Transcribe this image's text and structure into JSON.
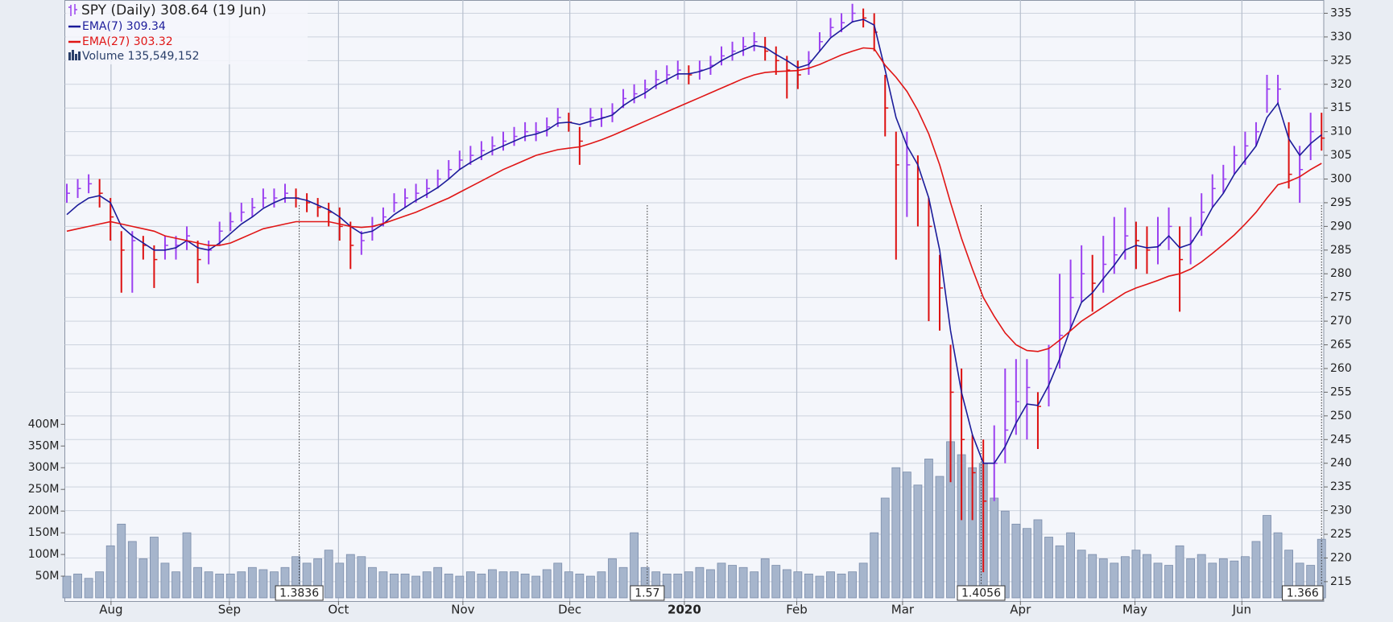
{
  "chart_data": {
    "type": "ohlc",
    "price": {
      "name": "SPY (Daily) 308.64 (19 Jun)",
      "up_color": "#9b40f0",
      "down_color": "#dd1010",
      "high": [
        299,
        300,
        301,
        300,
        296,
        289,
        289,
        288,
        286,
        288,
        288,
        290,
        287,
        287,
        291,
        293,
        295,
        296,
        298,
        298,
        299,
        298,
        297,
        296,
        295,
        294,
        291,
        289,
        292,
        294,
        297,
        298,
        299,
        300,
        302,
        304,
        306,
        307,
        308,
        309,
        310,
        311,
        312,
        312,
        313,
        315,
        314,
        311,
        315,
        315,
        316,
        319,
        320,
        321,
        323,
        324,
        325,
        324,
        325,
        326,
        328,
        329,
        330,
        331,
        330,
        328,
        326,
        325,
        327,
        331,
        334,
        335,
        337,
        336,
        335,
        322,
        310,
        310,
        305,
        296,
        284,
        265,
        260,
        246,
        245,
        248,
        260,
        262,
        262,
        255,
        265,
        280,
        283,
        286,
        284,
        288,
        292,
        294,
        291,
        290,
        292,
        294,
        290,
        292,
        297,
        301,
        303,
        307,
        310,
        312,
        322,
        322,
        312,
        307,
        314,
        314
      ],
      "low": [
        295,
        296,
        297,
        294,
        287,
        276,
        276,
        283,
        277,
        283,
        283,
        285,
        278,
        282,
        286,
        289,
        291,
        292,
        294,
        294,
        295,
        294,
        293,
        292,
        290,
        287,
        281,
        284,
        287,
        290,
        293,
        294,
        295,
        296,
        298,
        300,
        302,
        303,
        304,
        305,
        306,
        307,
        308,
        308,
        309,
        311,
        310,
        303,
        311,
        311,
        312,
        315,
        316,
        317,
        319,
        320,
        321,
        320,
        321,
        322,
        324,
        325,
        326,
        327,
        325,
        322,
        317,
        319,
        322,
        327,
        330,
        331,
        333,
        332,
        327,
        309,
        283,
        292,
        290,
        270,
        268,
        236,
        228,
        228,
        217,
        232,
        240,
        246,
        245,
        243,
        252,
        260,
        268,
        274,
        272,
        276,
        280,
        283,
        281,
        280,
        282,
        285,
        272,
        282,
        288,
        294,
        297,
        301,
        303,
        307,
        314,
        316,
        298,
        295,
        304,
        306
      ],
      "close": [
        297,
        298,
        299,
        297,
        292,
        285,
        287,
        286,
        283,
        286,
        286,
        288,
        283,
        285,
        289,
        291,
        293,
        294,
        296,
        296,
        297,
        296,
        295,
        294,
        293,
        290,
        286,
        287,
        290,
        292,
        295,
        296,
        297,
        298,
        300,
        302,
        304,
        305,
        306,
        307,
        308,
        309,
        310,
        310,
        311,
        313,
        312,
        308,
        313,
        313,
        314,
        317,
        318,
        319,
        321,
        322,
        323,
        322,
        323,
        324,
        326,
        327,
        328,
        329,
        327,
        325,
        323,
        322,
        325,
        329,
        332,
        333,
        335,
        334,
        331,
        315,
        303,
        303,
        300,
        290,
        277,
        255,
        245,
        238,
        232,
        240,
        247,
        253,
        256,
        252,
        260,
        267,
        275,
        280,
        278,
        282,
        284,
        288,
        287,
        285,
        286,
        290,
        283,
        287,
        293,
        298,
        300,
        305,
        307,
        310,
        319,
        319,
        301,
        302,
        310,
        308.64
      ]
    },
    "series": [
      {
        "name": "EMA(7) 309.34",
        "color": "#1c1c9a",
        "values": [
          292.5,
          294.5,
          296,
          296.5,
          295,
          290,
          288,
          286.5,
          285,
          285,
          285.5,
          287,
          285.5,
          285,
          286.5,
          288.5,
          290.5,
          292,
          293.8,
          295,
          296,
          296,
          295.5,
          294.5,
          293.5,
          292,
          290,
          288.5,
          289,
          290.5,
          292.5,
          294,
          295.5,
          296.8,
          298.2,
          300,
          302,
          303.5,
          304.8,
          306,
          307,
          308,
          309,
          309.5,
          310.3,
          311.8,
          312,
          311.5,
          312.2,
          312.8,
          313.5,
          315.5,
          317,
          318.2,
          319.8,
          321,
          322.2,
          322.2,
          322.7,
          323.5,
          325,
          326.2,
          327.2,
          328.2,
          327.8,
          326.3,
          325,
          323.5,
          324.2,
          327,
          329.8,
          331.5,
          333.2,
          333.7,
          332.5,
          323,
          313,
          307,
          303,
          296,
          285,
          268,
          255,
          246,
          240,
          240,
          243.5,
          248.5,
          252.5,
          252.2,
          256.5,
          262,
          268.5,
          274,
          276,
          279,
          281.8,
          285,
          286,
          285.5,
          285.7,
          288,
          285.5,
          286.3,
          289.8,
          294,
          297,
          301,
          304,
          307,
          313,
          316,
          308.5,
          305,
          307.5,
          309.34
        ]
      },
      {
        "name": "EMA(27) 303.32",
        "color": "#e01515",
        "values": [
          289,
          289.5,
          290,
          290.5,
          291,
          290.5,
          290,
          289.5,
          289,
          288,
          287.5,
          287,
          286.5,
          286,
          286,
          286.5,
          287.5,
          288.5,
          289.5,
          290,
          290.5,
          291,
          291,
          291,
          291,
          290.5,
          290,
          289.8,
          290,
          290.6,
          291.4,
          292.2,
          293,
          294,
          295,
          296,
          297.2,
          298.4,
          299.6,
          300.8,
          302,
          303,
          304,
          305,
          305.6,
          306.2,
          306.5,
          306.8,
          307.5,
          308.3,
          309.2,
          310.2,
          311.2,
          312.2,
          313.2,
          314.2,
          315.2,
          316.2,
          317.2,
          318.2,
          319.2,
          320.2,
          321.2,
          322,
          322.5,
          322.7,
          322.8,
          322.9,
          323.4,
          324.2,
          325.2,
          326.2,
          327,
          327.7,
          327.5,
          324,
          321.5,
          318.5,
          314.5,
          309.5,
          303,
          295,
          287.5,
          281,
          275,
          271,
          267.5,
          265,
          263.8,
          263.6,
          264.2,
          266,
          268,
          270,
          271.5,
          273,
          274.5,
          276,
          277,
          277.8,
          278.6,
          279.5,
          280,
          281,
          282.5,
          284.3,
          286.2,
          288.2,
          290.5,
          293,
          296,
          298.8,
          299.5,
          300.5,
          302,
          303.32
        ]
      }
    ],
    "volume": {
      "name": "Volume 135,549,152",
      "color": "#a6b5cc",
      "values": [
        50000000.0,
        55000000.0,
        45000000.0,
        60000000.0,
        120000000.0,
        170000000.0,
        130000000.0,
        90000000.0,
        140000000.0,
        80000000.0,
        60000000.0,
        150000000.0,
        70000000.0,
        60000000.0,
        55000000.0,
        55000000.0,
        60000000.0,
        70000000.0,
        65000000.0,
        60000000.0,
        70000000.0,
        95000000.0,
        80000000.0,
        90000000.0,
        110000000.0,
        80000000.0,
        100000000.0,
        95000000.0,
        70000000.0,
        60000000.0,
        55000000.0,
        55000000.0,
        50000000.0,
        60000000.0,
        70000000.0,
        55000000.0,
        50000000.0,
        60000000.0,
        55000000.0,
        65000000.0,
        60000000.0,
        60000000.0,
        55000000.0,
        50000000.0,
        65000000.0,
        80000000.0,
        60000000.0,
        55000000.0,
        50000000.0,
        60000000.0,
        90000000.0,
        70000000.0,
        150000000.0,
        70000000.0,
        60000000.0,
        55000000.0,
        55000000.0,
        60000000.0,
        70000000.0,
        65000000.0,
        80000000.0,
        75000000.0,
        70000000.0,
        60000000.0,
        90000000.0,
        75000000.0,
        65000000.0,
        60000000.0,
        55000000.0,
        50000000.0,
        60000000.0,
        55000000.0,
        60000000.0,
        80000000.0,
        150000000.0,
        230000000.0,
        300000000.0,
        290000000.0,
        260000000.0,
        320000000.0,
        280000000.0,
        360000000.0,
        330000000.0,
        300000000.0,
        310000000.0,
        230000000.0,
        200000000.0,
        170000000.0,
        160000000.0,
        180000000.0,
        140000000.0,
        120000000.0,
        150000000.0,
        110000000.0,
        100000000.0,
        90000000.0,
        80000000.0,
        95000000.0,
        110000000.0,
        100000000.0,
        80000000.0,
        75000000.0,
        120000000.0,
        90000000.0,
        100000000.0,
        80000000.0,
        90000000.0,
        85000000.0,
        95000000.0,
        130000000.0,
        190000000.0,
        150000000.0,
        110000000.0,
        80000000.0,
        75000000.0,
        135000000.0
      ]
    },
    "ylim": [
      210.9,
      337.8
    ],
    "yticks": [
      215,
      220,
      225,
      230,
      235,
      240,
      245,
      250,
      255,
      260,
      265,
      270,
      275,
      280,
      285,
      290,
      295,
      300,
      305,
      310,
      315,
      320,
      325,
      330,
      335
    ],
    "y2lim": [
      0,
      1378000000
    ],
    "y2ticks": [
      {
        "value": 50000000,
        "label": "50M"
      },
      {
        "value": 100000000,
        "label": "100M"
      },
      {
        "value": 150000000,
        "label": "150M"
      },
      {
        "value": 200000000,
        "label": "200M"
      },
      {
        "value": 250000000,
        "label": "250M"
      },
      {
        "value": 300000000,
        "label": "300M"
      },
      {
        "value": 350000000,
        "label": "350M"
      },
      {
        "value": 400000000,
        "label": "400M"
      }
    ],
    "xticks": [
      {
        "value": 4.05,
        "label": "Aug"
      },
      {
        "value": 14.9,
        "label": "Sep"
      },
      {
        "value": 24.9,
        "label": "Oct"
      },
      {
        "value": 36.3,
        "label": "Nov"
      },
      {
        "value": 46.1,
        "label": "Dec"
      },
      {
        "value": 56.6,
        "label": "2020"
      },
      {
        "value": 66.9,
        "label": "Feb"
      },
      {
        "value": 76.6,
        "label": "Mar"
      },
      {
        "value": 87.4,
        "label": "Apr"
      },
      {
        "value": 97.9,
        "label": "May"
      },
      {
        "value": 107.7,
        "label": "Jun"
      }
    ],
    "annotations": [
      {
        "x": 21.3,
        "label": "1.3836"
      },
      {
        "x": 53.2,
        "label": "1.57"
      },
      {
        "x": 83.8,
        "label": "1.4056"
      },
      {
        "x": 115,
        "label": "1.366"
      }
    ],
    "grid": true
  }
}
